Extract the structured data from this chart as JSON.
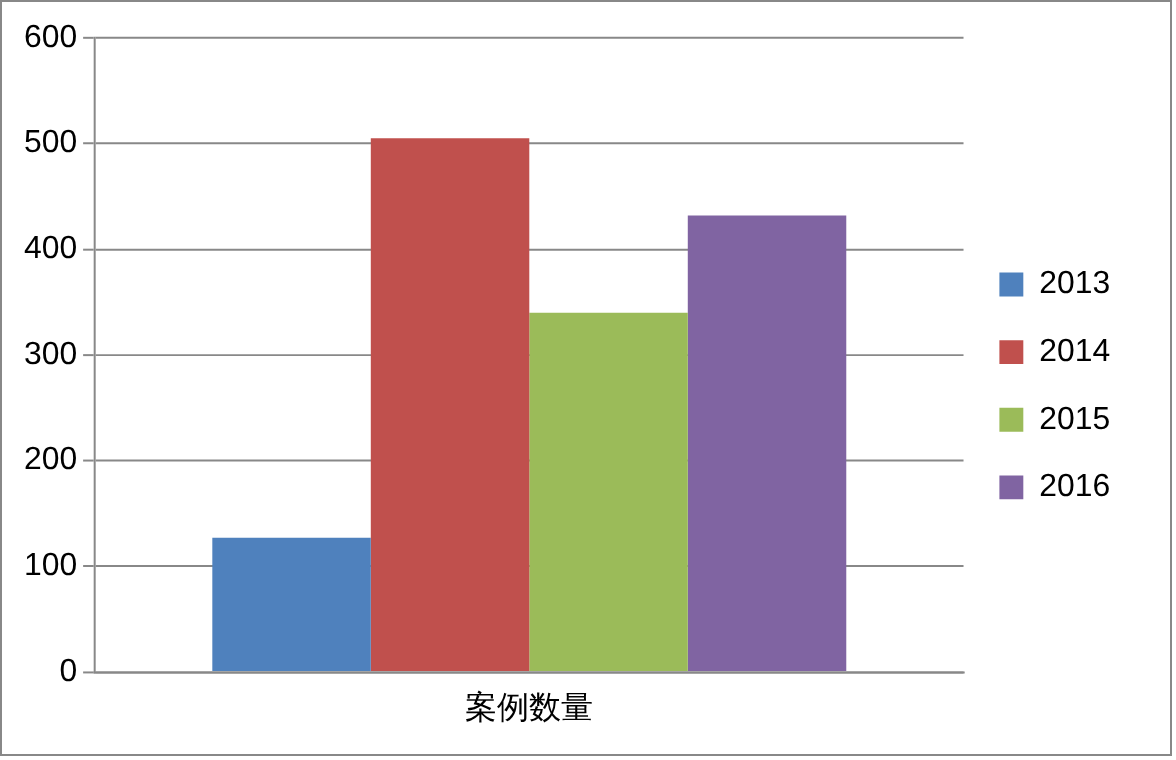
{
  "chart_data": {
    "type": "bar",
    "categories": [
      "案例数量"
    ],
    "series": [
      {
        "name": "2013",
        "color": "#4f81bd",
        "values": [
          127
        ]
      },
      {
        "name": "2014",
        "color": "#c0504d",
        "values": [
          505
        ]
      },
      {
        "name": "2015",
        "color": "#9bbb59",
        "values": [
          340
        ]
      },
      {
        "name": "2016",
        "color": "#8064a2",
        "values": [
          432
        ]
      }
    ],
    "ylim": [
      0,
      600
    ],
    "yticks": [
      0,
      100,
      200,
      300,
      400,
      500,
      600
    ],
    "grid": "y",
    "legend": "right"
  }
}
